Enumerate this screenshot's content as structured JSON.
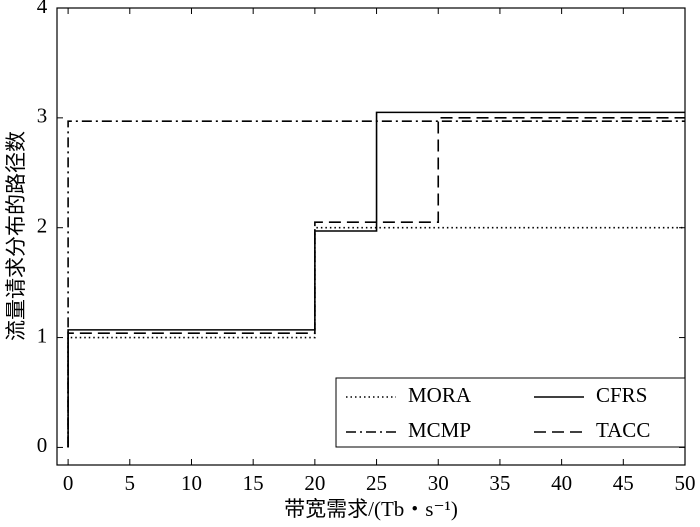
{
  "chart_data": {
    "type": "line",
    "xlabel": "带宽需求/(Tb・s⁻¹)",
    "ylabel": "流量请求分布的路径数",
    "x": [
      0,
      0,
      20,
      20,
      25,
      25,
      30,
      30,
      50
    ],
    "series": [
      {
        "name": "MORA",
        "color": "#000000",
        "dash": "dotted",
        "values": [
          0,
          1.0,
          1.0,
          2.0,
          2.0,
          2.0,
          2.0,
          2.0,
          2.0
        ]
      },
      {
        "name": "CFRS",
        "color": "#000000",
        "dash": "solid",
        "values": [
          0,
          1.07,
          1.07,
          1.97,
          1.97,
          3.05,
          3.05,
          3.05,
          3.05
        ]
      },
      {
        "name": "MCMP",
        "color": "#000000",
        "dash": "dashdot",
        "values": [
          0,
          2.97,
          2.97,
          2.97,
          2.97,
          2.97,
          2.97,
          2.97,
          2.97
        ]
      },
      {
        "name": "TACC",
        "color": "#000000",
        "dash": "dashed",
        "values": [
          0,
          1.04,
          1.04,
          2.05,
          2.05,
          2.05,
          2.05,
          3.0,
          3.0
        ]
      }
    ],
    "xlim": [
      -0.9,
      50
    ],
    "xticks": [
      0,
      5,
      10,
      15,
      20,
      25,
      30,
      35,
      40,
      45,
      50
    ],
    "ylim": [
      -0.16,
      4
    ],
    "yticks": [
      0,
      1,
      2,
      3,
      4
    ],
    "legend": "lower right",
    "grid": false
  }
}
